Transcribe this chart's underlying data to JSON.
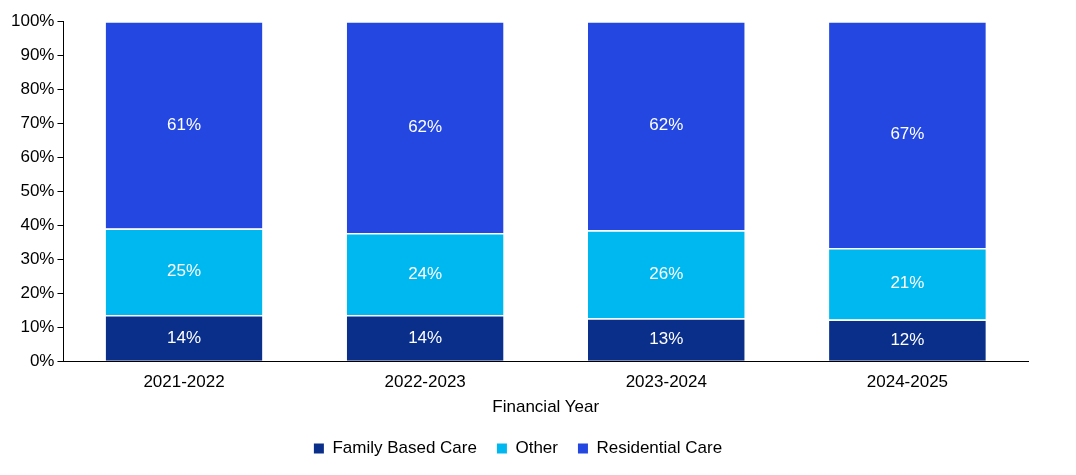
{
  "chart_data": {
    "type": "bar",
    "stacked": true,
    "xlabel": "Financial Year",
    "categories": [
      "2021-2022",
      "2022-2023",
      "2023-2024",
      "2024-2025"
    ],
    "series": [
      {
        "name": "Family Based Care",
        "color": "#0a2f8a",
        "values": [
          13.6,
          13.6,
          12.6,
          12.3
        ],
        "value_labels": [
          "14%",
          "14%",
          "13%",
          "12%"
        ]
      },
      {
        "name": "Other",
        "color": "#00b8f0",
        "values": [
          25.4,
          24.1,
          25.9,
          21.0
        ],
        "value_labels": [
          "25%",
          "24%",
          "26%",
          "21%"
        ]
      },
      {
        "name": "Residential Care",
        "color": "#2347e0",
        "values": [
          61.0,
          62.3,
          61.5,
          66.7
        ],
        "value_labels": [
          "61%",
          "62%",
          "62%",
          "67%"
        ]
      }
    ],
    "ylim": [
      0,
      100
    ],
    "yticks": [
      {
        "value": 0,
        "label": "0%"
      },
      {
        "value": 10,
        "label": "10%"
      },
      {
        "value": 20,
        "label": "20%"
      },
      {
        "value": 30,
        "label": "30%"
      },
      {
        "value": 40,
        "label": "40%"
      },
      {
        "value": 50,
        "label": "50%"
      },
      {
        "value": 60,
        "label": "60%"
      },
      {
        "value": 70,
        "label": "70%"
      },
      {
        "value": 80,
        "label": "80%"
      },
      {
        "value": 90,
        "label": "90%"
      },
      {
        "value": 100,
        "label": "100%"
      }
    ],
    "grid": false,
    "legend": "bottom"
  }
}
